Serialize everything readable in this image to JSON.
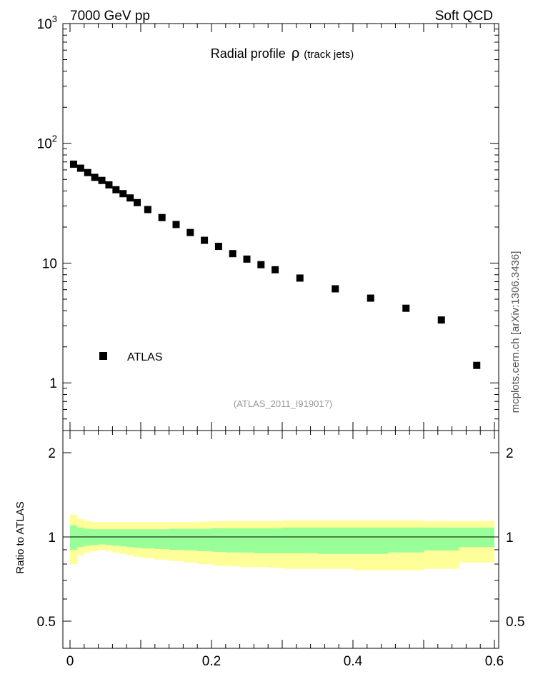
{
  "header": {
    "left": "7000 GeV pp",
    "right": "Soft QCD"
  },
  "side_label": "mcplots.cern.ch [arXiv:1306.3436]",
  "chart_data": [
    {
      "type": "scatter",
      "title": "Radial profile",
      "title_symbol": "ρ",
      "title_suffix": "(track jets)",
      "analysis_id": "(ATLAS_2011_I919017)",
      "yscale": "log",
      "xlim": [
        0,
        0.6
      ],
      "ylim": [
        0.4,
        1000
      ],
      "y_ticks": [
        {
          "value": 1000,
          "base": "10",
          "exp": "3"
        },
        {
          "value": 100,
          "base": "10",
          "exp": "2"
        },
        {
          "value": 10,
          "base": "10",
          "exp": ""
        },
        {
          "value": 1,
          "base": "1",
          "exp": ""
        }
      ],
      "legend": {
        "label": "ATLAS",
        "position": "lower-left"
      },
      "series": [
        {
          "name": "ATLAS",
          "marker": "square",
          "color": "#000000",
          "x": [
            0.005,
            0.015,
            0.025,
            0.035,
            0.045,
            0.055,
            0.065,
            0.075,
            0.085,
            0.095,
            0.11,
            0.13,
            0.15,
            0.17,
            0.19,
            0.21,
            0.23,
            0.25,
            0.27,
            0.29,
            0.325,
            0.375,
            0.425,
            0.475,
            0.525,
            0.575
          ],
          "y": [
            67,
            62,
            57,
            52,
            49,
            45,
            41,
            38,
            35,
            32,
            28,
            24,
            21,
            18,
            15.5,
            13.8,
            12.0,
            10.8,
            9.7,
            8.8,
            7.5,
            6.1,
            5.1,
            4.2,
            3.35,
            1.4
          ]
        }
      ]
    },
    {
      "type": "area",
      "ylabel": "Ratio to ATLAS",
      "xlim": [
        0,
        0.6
      ],
      "ylim": [
        0.4,
        2.4
      ],
      "x_ticks": [
        "0",
        "0.2",
        "0.4",
        "0.6"
      ],
      "y_ticks": [
        "0.5",
        "1",
        "2"
      ],
      "reference_line": 1,
      "colors": {
        "inner_band": "#99ff99",
        "outer_band": "#ffff99"
      },
      "bins": [
        0,
        0.01,
        0.02,
        0.03,
        0.04,
        0.05,
        0.06,
        0.07,
        0.08,
        0.09,
        0.1,
        0.12,
        0.14,
        0.16,
        0.18,
        0.2,
        0.22,
        0.24,
        0.26,
        0.28,
        0.3,
        0.35,
        0.4,
        0.45,
        0.5,
        0.55,
        0.6
      ],
      "outer_band": {
        "low": [
          0.8,
          0.86,
          0.88,
          0.89,
          0.9,
          0.89,
          0.88,
          0.87,
          0.86,
          0.85,
          0.84,
          0.83,
          0.82,
          0.81,
          0.8,
          0.79,
          0.785,
          0.78,
          0.78,
          0.775,
          0.77,
          0.77,
          0.76,
          0.76,
          0.77,
          0.81
        ],
        "high": [
          1.2,
          1.16,
          1.14,
          1.13,
          1.13,
          1.13,
          1.13,
          1.13,
          1.13,
          1.13,
          1.13,
          1.13,
          1.13,
          1.13,
          1.135,
          1.14,
          1.14,
          1.14,
          1.14,
          1.14,
          1.145,
          1.145,
          1.145,
          1.145,
          1.14,
          1.14
        ]
      },
      "inner_band": {
        "low": [
          0.9,
          0.92,
          0.93,
          0.935,
          0.94,
          0.935,
          0.93,
          0.925,
          0.92,
          0.915,
          0.91,
          0.905,
          0.9,
          0.895,
          0.89,
          0.885,
          0.88,
          0.88,
          0.875,
          0.875,
          0.875,
          0.87,
          0.87,
          0.88,
          0.895,
          0.92
        ],
        "high": [
          1.1,
          1.08,
          1.07,
          1.065,
          1.065,
          1.065,
          1.065,
          1.065,
          1.065,
          1.065,
          1.065,
          1.065,
          1.07,
          1.07,
          1.07,
          1.075,
          1.075,
          1.075,
          1.075,
          1.075,
          1.08,
          1.08,
          1.08,
          1.08,
          1.08,
          1.08
        ]
      }
    }
  ]
}
